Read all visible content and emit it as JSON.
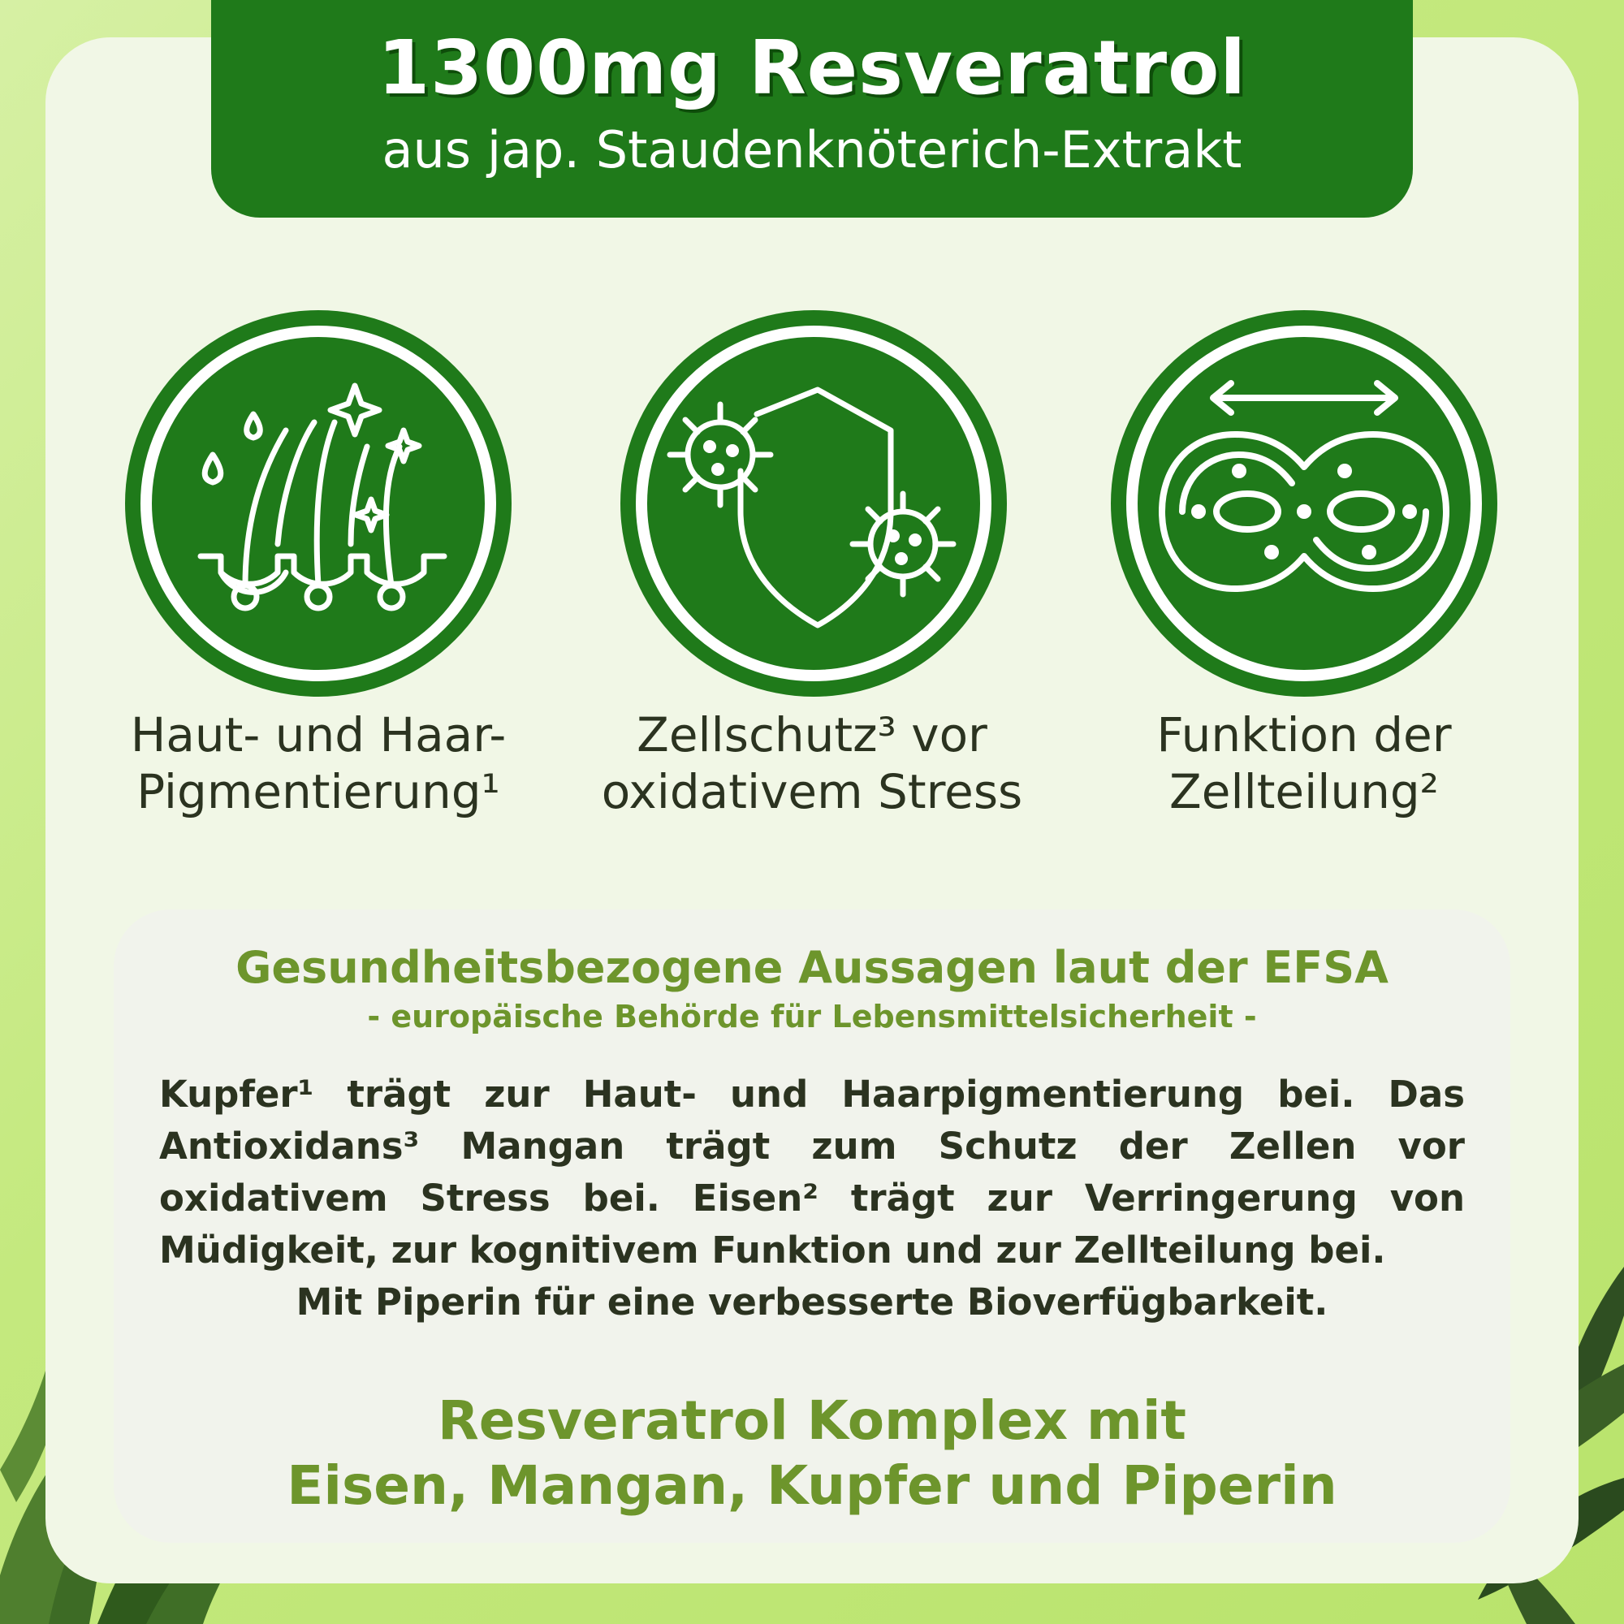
{
  "banner": {
    "title": "1300mg Resveratrol",
    "subtitle": "aus jap. Staudenknöterich-Extrakt"
  },
  "benefits": [
    {
      "icon": "hair-follicle-icon",
      "line1": "Haut- und Haar-",
      "line2": "Pigmentierung¹"
    },
    {
      "icon": "shield-virus-icon",
      "line1": "Zellschutz³ vor",
      "line2": "oxidativem Stress"
    },
    {
      "icon": "cell-division-icon",
      "line1": "Funktion der",
      "line2": "Zellteilung²"
    }
  ],
  "info": {
    "title": "Gesundheitsbezogene Aussagen laut der EFSA",
    "subtitle": "- europäische Behörde für Lebensmittelsicherheit -",
    "body": "Kupfer¹ trägt zur Haut- und Haarpigmentierung bei. Das Antioxidans³ Mangan trägt zum Schutz der Zellen vor oxidativem Stress bei. Eisen² trägt zur Verringerung von Müdigkeit, zur kognitivem Funktion und zur Zellteilung bei.",
    "body_last": "Mit Piperin für eine verbesserte Bioverfügbarkeit.",
    "closing_line1": "Resveratrol Komplex mit",
    "closing_line2": "Eisen, Mangan, Kupfer und Piperin"
  },
  "colors": {
    "dark_green": "#1f7a1a",
    "accent_green": "#6d952c",
    "text": "#2b3320"
  }
}
